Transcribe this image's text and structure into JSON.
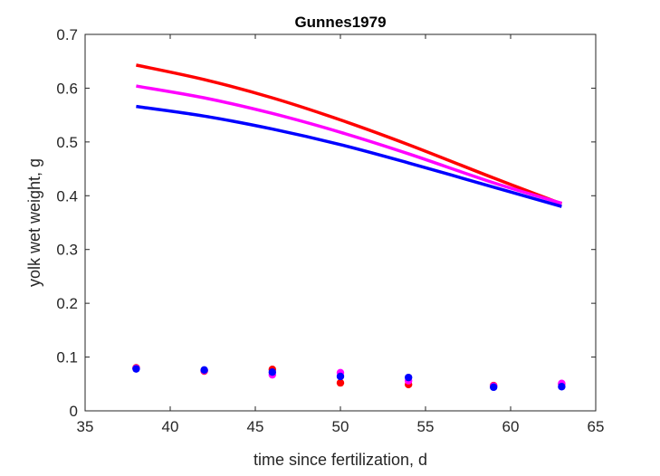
{
  "chart_data": {
    "type": "line",
    "title": "Gunnes1979",
    "xlabel": "time since fertilization, d",
    "ylabel": "yolk wet weight, g",
    "xlim": [
      35,
      65
    ],
    "ylim": [
      0,
      0.7
    ],
    "xticks": [
      "35",
      "40",
      "45",
      "50",
      "55",
      "60",
      "65"
    ],
    "yticks": [
      "0",
      "0.1",
      "0.2",
      "0.3",
      "0.4",
      "0.5",
      "0.6",
      "0.7"
    ],
    "grid": false,
    "legend": "none",
    "curves": [
      {
        "color": "#ff0000",
        "x": [
          38,
          42,
          46,
          50,
          54,
          59,
          63
        ],
        "y": [
          0.643,
          0.616,
          0.582,
          0.541,
          0.495,
          0.433,
          0.385
        ]
      },
      {
        "color": "#ff00ff",
        "x": [
          38,
          42,
          46,
          50,
          54,
          59,
          63
        ],
        "y": [
          0.604,
          0.582,
          0.553,
          0.518,
          0.478,
          0.424,
          0.386
        ]
      },
      {
        "color": "#0000ff",
        "x": [
          38,
          42,
          46,
          50,
          54,
          59,
          63
        ],
        "y": [
          0.566,
          0.548,
          0.524,
          0.495,
          0.461,
          0.416,
          0.38
        ]
      }
    ],
    "points": [
      {
        "color": "#ff0000",
        "x": [
          38,
          42,
          46,
          50,
          54,
          59,
          63
        ],
        "y": [
          0.08,
          0.074,
          0.077,
          0.052,
          0.049,
          0.047,
          0.05
        ]
      },
      {
        "color": "#ff00ff",
        "x": [
          38,
          42,
          46,
          50,
          54,
          59,
          63
        ],
        "y": [
          0.079,
          0.075,
          0.067,
          0.071,
          0.056,
          0.046,
          0.051
        ]
      },
      {
        "color": "#0000ff",
        "x": [
          38,
          42,
          46,
          50,
          54,
          59,
          63
        ],
        "y": [
          0.078,
          0.076,
          0.072,
          0.064,
          0.062,
          0.044,
          0.045
        ]
      }
    ]
  }
}
